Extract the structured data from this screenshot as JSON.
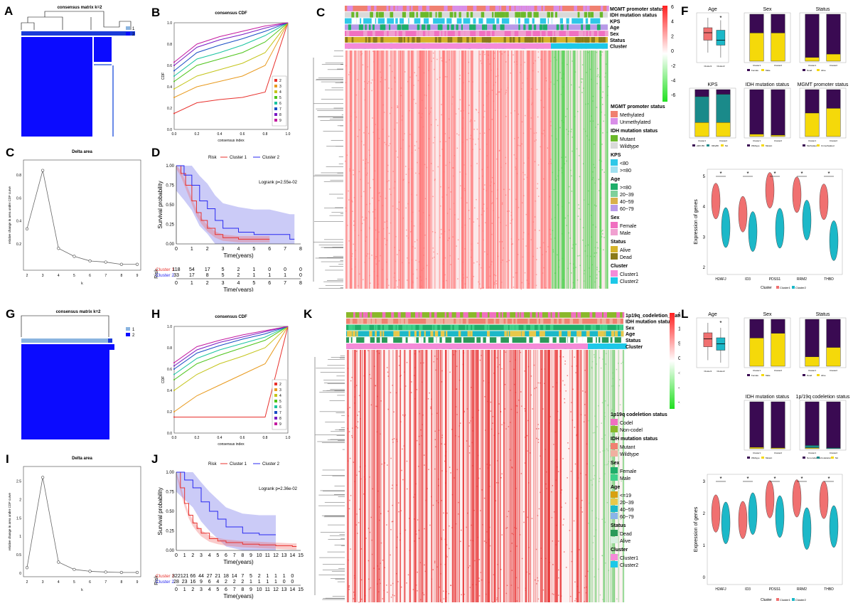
{
  "panel_letters": {
    "A": "A",
    "B": "B",
    "C_heat": "C",
    "F": "F",
    "C_delta": "C",
    "D": "D",
    "G": "G",
    "H": "H",
    "K": "K",
    "L": "L",
    "I": "I",
    "J": "J"
  },
  "colors": {
    "blue": "#0b0bff",
    "lightblue": "#8ab4e0",
    "red": "#e8312d",
    "cyan": "#1cb8c8",
    "purple": "#2f0a4a",
    "yellow": "#f5d90a",
    "teal": "#1a8f8f",
    "heat_red": "#ff2a2a",
    "heat_green": "#2bd82b"
  },
  "consensus_matrix": {
    "title": "consensus matrix k=2",
    "legend": [
      "1",
      "2"
    ]
  },
  "cdf_legend": [
    "2",
    "3",
    "4",
    "5",
    "6",
    "7",
    "8",
    "9"
  ],
  "cdf_colors": [
    "#e8312d",
    "#e89a1e",
    "#c4c41a",
    "#4ec41a",
    "#1ac4a0",
    "#1a4ec4",
    "#7a1ac4",
    "#c41aa0"
  ],
  "chart_data": [
    {
      "type": "line",
      "title": "consensus CDF",
      "xlabel": "consensus index",
      "ylabel": "CDF",
      "x": [
        0,
        0.2,
        0.4,
        0.6,
        0.8,
        1.0
      ],
      "xlim": [
        0,
        1
      ],
      "ylim": [
        0,
        1
      ],
      "series": [
        {
          "name": "2",
          "values": [
            0.15,
            0.25,
            0.28,
            0.3,
            0.35,
            1.0
          ]
        },
        {
          "name": "3",
          "values": [
            0.3,
            0.4,
            0.45,
            0.5,
            0.6,
            1.0
          ]
        },
        {
          "name": "4",
          "values": [
            0.38,
            0.5,
            0.56,
            0.62,
            0.72,
            1.0
          ]
        },
        {
          "name": "5",
          "values": [
            0.45,
            0.6,
            0.66,
            0.72,
            0.82,
            1.0
          ]
        },
        {
          "name": "6",
          "values": [
            0.5,
            0.66,
            0.72,
            0.79,
            0.88,
            1.0
          ]
        },
        {
          "name": "7",
          "values": [
            0.55,
            0.72,
            0.79,
            0.85,
            0.92,
            1.0
          ]
        },
        {
          "name": "8",
          "values": [
            0.6,
            0.77,
            0.84,
            0.89,
            0.95,
            1.0
          ]
        },
        {
          "name": "9",
          "values": [
            0.63,
            0.8,
            0.87,
            0.92,
            0.97,
            1.0
          ]
        }
      ]
    },
    {
      "type": "line",
      "title": "Delta area",
      "xlabel": "k",
      "ylabel": "relative change in area under CDF curve",
      "x": [
        2,
        3,
        4,
        5,
        6,
        7,
        8,
        9
      ],
      "values": [
        0.33,
        0.84,
        0.16,
        0.09,
        0.05,
        0.04,
        0.02,
        0.02
      ],
      "ylim": [
        0,
        0.9
      ]
    },
    {
      "type": "line",
      "title": "consensus CDF",
      "xlabel": "consensus index",
      "ylabel": "CDF",
      "x": [
        0,
        0.2,
        0.4,
        0.6,
        0.8,
        1.0
      ],
      "xlim": [
        0,
        1
      ],
      "ylim": [
        0,
        1
      ],
      "series": [
        {
          "name": "2",
          "values": [
            0.15,
            0.15,
            0.15,
            0.15,
            0.15,
            1.0
          ]
        },
        {
          "name": "3",
          "values": [
            0.2,
            0.35,
            0.45,
            0.55,
            0.65,
            1.0
          ]
        },
        {
          "name": "4",
          "values": [
            0.4,
            0.55,
            0.65,
            0.72,
            0.8,
            1.0
          ]
        },
        {
          "name": "5",
          "values": [
            0.5,
            0.65,
            0.73,
            0.8,
            0.87,
            1.0
          ]
        },
        {
          "name": "6",
          "values": [
            0.55,
            0.7,
            0.78,
            0.84,
            0.9,
            1.0
          ]
        },
        {
          "name": "7",
          "values": [
            0.6,
            0.75,
            0.82,
            0.88,
            0.93,
            1.0
          ]
        },
        {
          "name": "8",
          "values": [
            0.63,
            0.78,
            0.85,
            0.9,
            0.95,
            1.0
          ]
        },
        {
          "name": "9",
          "values": [
            0.66,
            0.81,
            0.87,
            0.92,
            0.96,
            1.0
          ]
        }
      ]
    },
    {
      "type": "line",
      "title": "Delta area",
      "xlabel": "k",
      "ylabel": "relative change in area under CDF curve",
      "x": [
        2,
        3,
        4,
        5,
        6,
        7,
        8,
        9
      ],
      "values": [
        0.15,
        2.6,
        0.3,
        0.1,
        0.05,
        0.03,
        0.02,
        0.02
      ],
      "ylim": [
        0,
        2.8
      ]
    },
    {
      "type": "line",
      "xlabel": "Time(years)",
      "ylabel": "Survival probability",
      "legend_title": "Risk",
      "series": [
        {
          "name": "Cluster 1"
        },
        {
          "name": "Cluster 2"
        }
      ],
      "annotation": "Logrank p=2.55e-02",
      "x_ticks": [
        "0",
        "1",
        "2",
        "3",
        "4",
        "5",
        "6",
        "7",
        "8"
      ],
      "risk_table": {
        "label": "Risk",
        "rows": [
          {
            "name": "Cluster 1",
            "values": [
              "118",
              "54",
              "17",
              "5",
              "2",
              "1",
              "0",
              "0",
              "0"
            ]
          },
          {
            "name": "Cluster 2",
            "values": [
              "33",
              "17",
              "8",
              "5",
              "2",
              "1",
              "1",
              "1",
              "0"
            ]
          }
        ]
      }
    },
    {
      "type": "line",
      "xlabel": "Time(years)",
      "ylabel": "Survival probability",
      "legend_title": "Risk",
      "series": [
        {
          "name": "Cluster 1"
        },
        {
          "name": "Cluster 2"
        }
      ],
      "annotation": "Logrank p=2.36e-02",
      "x_ticks": [
        "0",
        "1",
        "2",
        "3",
        "4",
        "5",
        "6",
        "7",
        "8",
        "9",
        "10",
        "11",
        "12",
        "13",
        "14",
        "15"
      ],
      "risk_table": {
        "label": "Risk",
        "rows": [
          {
            "name": "Cluster 1",
            "values": [
              "322",
              "121",
              "66",
              "44",
              "27",
              "21",
              "18",
              "14",
              "7",
              "5",
              "2",
              "1",
              "1",
              "1",
              "0"
            ]
          },
          {
            "name": "Cluster 2",
            "values": [
              "28",
              "23",
              "16",
              "9",
              "6",
              "4",
              "2",
              "2",
              "2",
              "1",
              "1",
              "1",
              "1",
              "0",
              "0"
            ]
          }
        ]
      }
    }
  ],
  "heatmap_top": {
    "tracks": [
      "MGMT promoter status",
      "IDH mutation status",
      "KPS",
      "Age",
      "Sex",
      "Status",
      "Cluster"
    ],
    "scale": [
      "6",
      "4",
      "2",
      "0",
      "-2",
      "-4",
      "-6"
    ],
    "legend": [
      {
        "title": "MGMT promoter status",
        "items": [
          {
            "label": "Methylated",
            "color": "#f08070"
          },
          {
            "label": "Unmethylated",
            "color": "#d98ee8"
          }
        ]
      },
      {
        "title": "IDH mutation status",
        "items": [
          {
            "label": "Mutant",
            "color": "#6bb82a"
          },
          {
            "label": "Wildtype",
            "color": "#d9d9d9"
          }
        ]
      },
      {
        "title": "KPS",
        "items": [
          {
            "label": "<80",
            "color": "#2ec8e8"
          },
          {
            "label": ">=80",
            "color": "#a0e0f0"
          }
        ]
      },
      {
        "title": "Age",
        "items": [
          {
            "label": ">=80",
            "color": "#1fae6a"
          },
          {
            "label": "20~39",
            "color": "#7fd09a"
          },
          {
            "label": "40~59",
            "color": "#d8b04a"
          },
          {
            "label": "60~79",
            "color": "#b89ae8"
          }
        ]
      },
      {
        "title": "Sex",
        "items": [
          {
            "label": "Female",
            "color": "#f070c0"
          },
          {
            "label": "Male",
            "color": "#f0a0d0"
          }
        ]
      },
      {
        "title": "Status",
        "items": [
          {
            "label": "Alive",
            "color": "#d6b42a"
          },
          {
            "label": "Dead",
            "color": "#8a7a1a"
          }
        ]
      },
      {
        "title": "Cluster",
        "items": [
          {
            "label": "Cluster1",
            "color": "#f58bd8"
          },
          {
            "label": "Cluster2",
            "color": "#1cc8e8"
          }
        ]
      }
    ]
  },
  "heatmap_bottom": {
    "tracks": [
      "1p19q_codeletion_status",
      "IDH mutation status",
      "Sex",
      "Age",
      "Status",
      "Cluster"
    ],
    "scale": [
      "15",
      "10",
      "5",
      "0",
      "-5",
      "-10",
      "-15"
    ],
    "legend": [
      {
        "title": "1p19q codeletion status",
        "items": [
          {
            "label": "Codel",
            "color": "#f070c0"
          },
          {
            "label": "Non-codel",
            "color": "#8ab82a"
          }
        ]
      },
      {
        "title": "IDH mutation status",
        "items": [
          {
            "label": "Mutant",
            "color": "#f08070"
          },
          {
            "label": "Wildtype",
            "color": "#f0b0a0"
          }
        ]
      },
      {
        "title": "Sex",
        "items": [
          {
            "label": "Female",
            "color": "#1fae6a"
          },
          {
            "label": "Male",
            "color": "#3ed08a"
          }
        ]
      },
      {
        "title": "Age",
        "items": [
          {
            "label": "<=19",
            "color": "#d8a010"
          },
          {
            "label": "20~39",
            "color": "#e8c84a"
          },
          {
            "label": "40~59",
            "color": "#1cb8c8"
          },
          {
            "label": "60~79",
            "color": "#8ab4e8"
          }
        ]
      },
      {
        "title": "Status",
        "items": [
          {
            "label": "Dead",
            "color": "#2a9a5a"
          },
          {
            "label": "Alive",
            "color": "#d8f0e0"
          }
        ]
      },
      {
        "title": "Cluster",
        "items": [
          {
            "label": "Cluster1",
            "color": "#f58bd8"
          },
          {
            "label": "Cluster2",
            "color": "#1cc8e8"
          }
        ]
      }
    ]
  },
  "panel_F": {
    "age_title": "Age",
    "sex_title": "Sex",
    "status_title": "Status",
    "kps_title": "KPS",
    "idh_title": "IDH mutation status",
    "mgmt_title": "MGMT promoter status",
    "star": "*",
    "cluster_ticks": [
      "Cluster1",
      "Cluster2"
    ],
    "legends": {
      "sex": [
        "Female",
        "Male"
      ],
      "status": [
        "Dead",
        "Alive"
      ],
      "kps": [
        "≥90/<80",
        "<90/≥80",
        "NA"
      ],
      "idh": [
        "Wildtype",
        "Mutant"
      ],
      "mgmt": [
        "Methylated",
        "Unmethylated"
      ]
    },
    "violin": {
      "ylabel": "Expression of genes",
      "genes": [
        "H2AFJ",
        "ID3",
        "PDSS1",
        "RRM2",
        "THBD"
      ],
      "legend_title": "Cluster",
      "legend": [
        "Cluster1",
        "Cluster2"
      ],
      "yticks": [
        "5",
        "4",
        "3",
        "2"
      ]
    }
  },
  "panel_L": {
    "age_title": "Age",
    "sex_title": "Sex",
    "status_title": "Status",
    "idh_title": "IDH mutation status",
    "codel_title": "1p/19q codeletion status",
    "star": "*",
    "cluster_ticks": [
      "Cluster1",
      "Cluster2"
    ],
    "legends": {
      "sex": [
        "Female",
        "Male"
      ],
      "status": [
        "Dead",
        "Alive"
      ],
      "idh": [
        "Wildtype",
        "Mutant"
      ],
      "codel": [
        "Non-codeletion",
        "Codeletion",
        "NA"
      ]
    },
    "violin": {
      "ylabel": "Expression of genes",
      "genes": [
        "H2AFJ",
        "ID3",
        "PDSS1",
        "RRM2",
        "THBD"
      ],
      "legend_title": "Cluster",
      "legend": [
        "Cluster1",
        "Cluster2"
      ],
      "yticks": [
        "3",
        "2",
        "1",
        "0"
      ]
    }
  }
}
